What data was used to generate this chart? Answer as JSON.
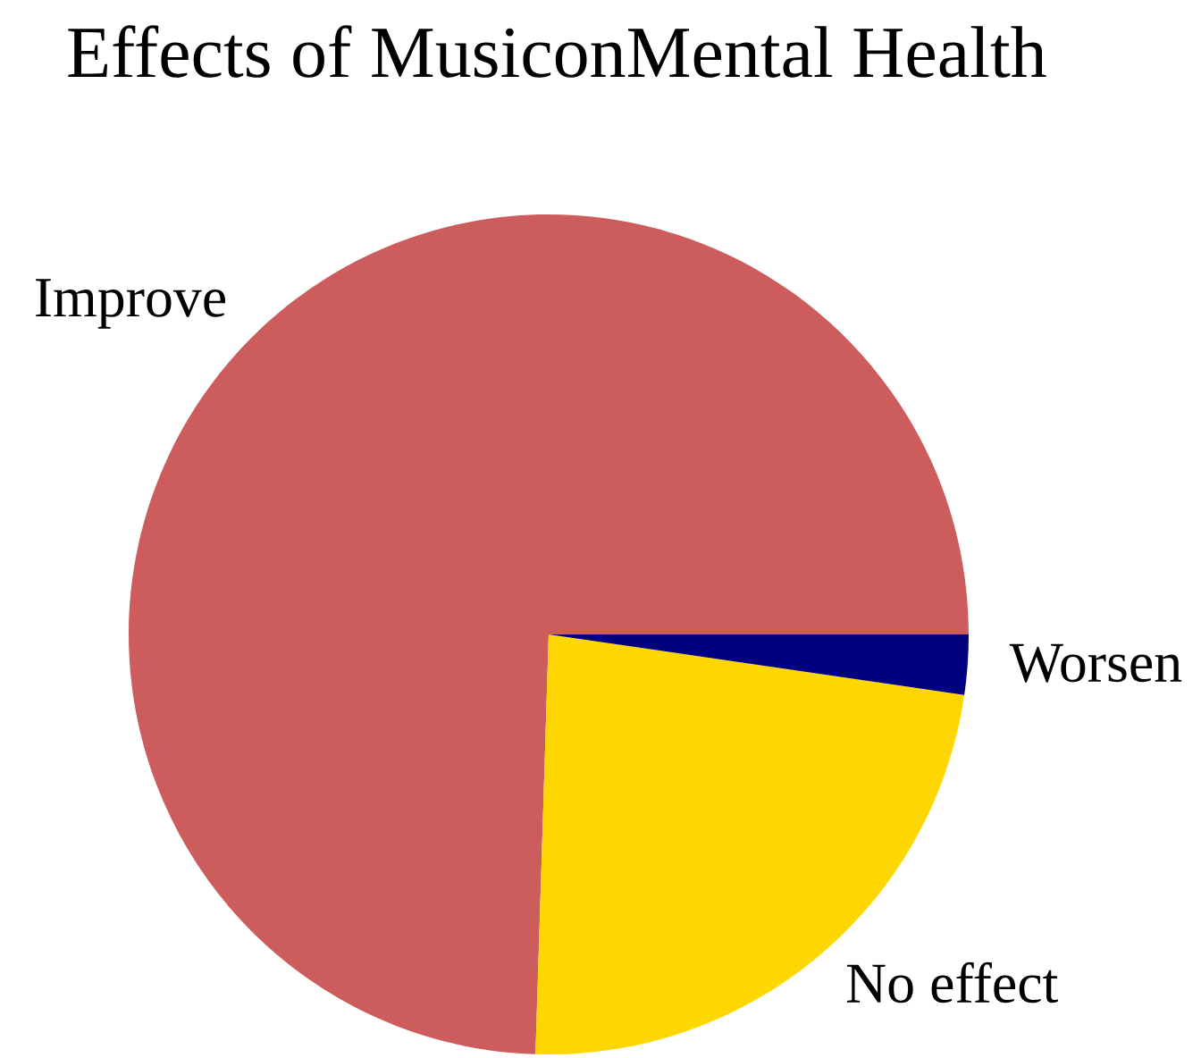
{
  "chart_data": {
    "type": "pie",
    "title": "Effects of MusiconMental Health",
    "categories": [
      "Improve",
      "No effect",
      "Worsen"
    ],
    "values": [
      74.5,
      23.2,
      2.3
    ],
    "colors": [
      "#cd5c5c",
      "#ffd700",
      "#000080"
    ]
  }
}
